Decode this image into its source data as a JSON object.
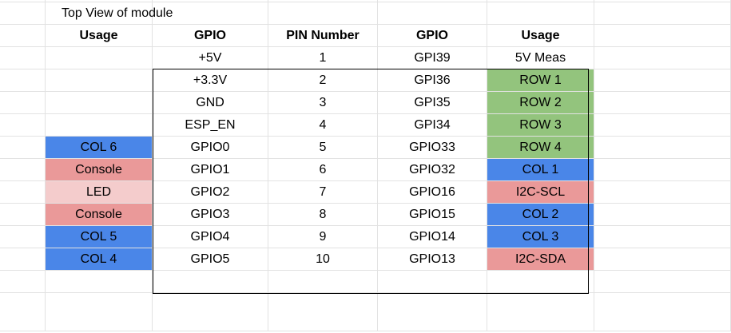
{
  "top_label": "Top View of module",
  "headers": [
    "Usage",
    "GPIO",
    "PIN Number",
    "GPIO",
    "Usage"
  ],
  "rows": [
    {
      "left_usage": "",
      "left_color": "",
      "gpio_left": "+5V",
      "pin": "1",
      "gpio_right": "GPI39",
      "right_usage": "5V Meas",
      "right_color": ""
    },
    {
      "left_usage": "",
      "left_color": "",
      "gpio_left": "+3.3V",
      "pin": "2",
      "gpio_right": "GPI36",
      "right_usage": "ROW 1",
      "right_color": "green"
    },
    {
      "left_usage": "",
      "left_color": "",
      "gpio_left": "GND",
      "pin": "3",
      "gpio_right": "GPI35",
      "right_usage": "ROW 2",
      "right_color": "green"
    },
    {
      "left_usage": "",
      "left_color": "",
      "gpio_left": "ESP_EN",
      "pin": "4",
      "gpio_right": "GPI34",
      "right_usage": "ROW 3",
      "right_color": "green"
    },
    {
      "left_usage": "COL 6",
      "left_color": "blue",
      "gpio_left": "GPIO0",
      "pin": "5",
      "gpio_right": "GPIO33",
      "right_usage": "ROW 4",
      "right_color": "green"
    },
    {
      "left_usage": "Console",
      "left_color": "red",
      "gpio_left": "GPIO1",
      "pin": "6",
      "gpio_right": "GPIO32",
      "right_usage": "COL 1",
      "right_color": "blue"
    },
    {
      "left_usage": "LED",
      "left_color": "pink",
      "gpio_left": "GPIO2",
      "pin": "7",
      "gpio_right": "GPIO16",
      "right_usage": "I2C-SCL",
      "right_color": "red"
    },
    {
      "left_usage": "Console",
      "left_color": "red",
      "gpio_left": "GPIO3",
      "pin": "8",
      "gpio_right": "GPIO15",
      "right_usage": "COL 2",
      "right_color": "blue"
    },
    {
      "left_usage": "COL 5",
      "left_color": "blue",
      "gpio_left": "GPIO4",
      "pin": "9",
      "gpio_right": "GPIO14",
      "right_usage": "COL 3",
      "right_color": "blue"
    },
    {
      "left_usage": "COL 4",
      "left_color": "blue",
      "gpio_left": "GPIO5",
      "pin": "10",
      "gpio_right": "GPIO13",
      "right_usage": "I2C-SDA",
      "right_color": "red"
    }
  ],
  "colors": {
    "green": "#93c47d",
    "blue": "#4a86e8",
    "red": "#ea9999",
    "pink": "#f4cccc",
    "grid": "#e2e2e2",
    "border": "#000000"
  }
}
